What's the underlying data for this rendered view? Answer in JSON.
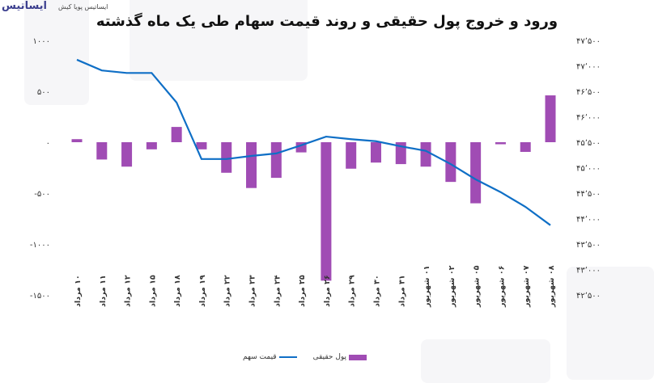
{
  "logo": {
    "mark": "ایساتیس",
    "subtitle": "ایساتیس پویا کیش"
  },
  "colors": {
    "bar": "#a04cb4",
    "line": "#0f6fc6"
  },
  "chart_data": {
    "type": "bar+line",
    "title": "ورود و خروج پول حقیقی و روند قیمت سهام طی یک ماه گذشته",
    "categories": [
      "۱۰ مرداد",
      "۱۱ مرداد",
      "۱۲ مرداد",
      "۱۵ مرداد",
      "۱۸ مرداد",
      "۱۹ مرداد",
      "۲۲ مرداد",
      "۲۳ مرداد",
      "۲۴ مرداد",
      "۲۵ مرداد",
      "۲۶ مرداد",
      "۲۹ مرداد",
      "۳۰ مرداد",
      "۳۱ مرداد",
      "۰۱ شهریور",
      "۰۲ شهریور",
      "۰۵ شهریور",
      "۰۶ شهریور",
      "۰۷ شهریور",
      "۰۸ شهریور"
    ],
    "series": [
      {
        "name": "پول حقیقی",
        "type": "bar",
        "axis": "left",
        "values": [
          30,
          -170,
          -240,
          -70,
          150,
          -70,
          -300,
          -450,
          -350,
          -100,
          -1360,
          -260,
          -200,
          -215,
          -240,
          -390,
          -600,
          -20,
          -95,
          460
        ]
      },
      {
        "name": "قیمت سهم",
        "type": "line",
        "axis": "right",
        "values": [
          47120,
          46910,
          46860,
          46860,
          46280,
          45170,
          45170,
          45230,
          45280,
          45440,
          45610,
          45560,
          45520,
          45420,
          45330,
          45070,
          44770,
          44520,
          44230,
          43870
        ]
      }
    ],
    "left_axis": {
      "ylim": [
        -1500,
        1000
      ],
      "ticks": [
        1000,
        500,
        0,
        -500,
        -1000,
        -1500
      ],
      "tick_labels": [
        "۱۰۰۰",
        "۵۰۰",
        "۰",
        "-۵۰۰",
        "-۱۰۰۰",
        "-۱۵۰۰"
      ]
    },
    "right_axis": {
      "ylim": [
        42500,
        47500
      ],
      "ticks": [
        47500,
        47000,
        46500,
        46000,
        45500,
        45000,
        44500,
        44000,
        43500,
        43000,
        42500
      ],
      "tick_labels": [
        "۴۷٬۵۰۰",
        "۴۷٬۰۰۰",
        "۴۶٬۵۰۰",
        "۴۶٬۰۰۰",
        "۴۵٬۵۰۰",
        "۴۵٬۰۰۰",
        "۴۴٬۵۰۰",
        "۴۴٬۰۰۰",
        "۴۳٬۵۰۰",
        "۴۳٬۰۰۰",
        "۴۲٬۵۰۰"
      ]
    },
    "grid": false,
    "legend": "bottom"
  }
}
